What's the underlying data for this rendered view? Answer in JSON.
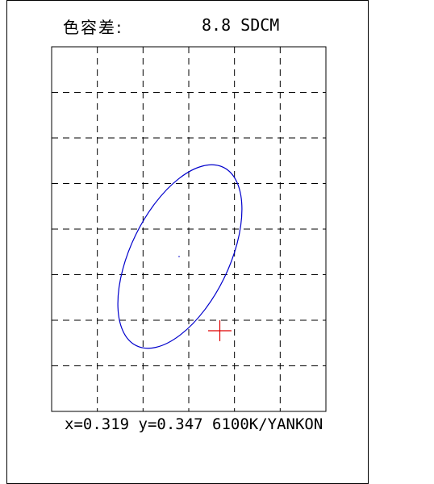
{
  "header": {
    "label": "色容差:",
    "value": "8.8 SDCM"
  },
  "footer": {
    "readout": "x=0.319 y=0.347 6100K/YANKON"
  },
  "colors": {
    "ellipse": "#0000cc",
    "target_marker": "#e00000",
    "grid": "#000000"
  },
  "chart_data": {
    "type": "scatter",
    "title": "色容差: 8.8 SDCM",
    "grid": "dashed",
    "grid_divisions": {
      "columns": 6,
      "rows": 8
    },
    "measured_point": {
      "x": 0.319,
      "y": 0.347
    },
    "ellipse_sdcm": 8.8,
    "cct": "6100K",
    "standard": "YANKON"
  }
}
